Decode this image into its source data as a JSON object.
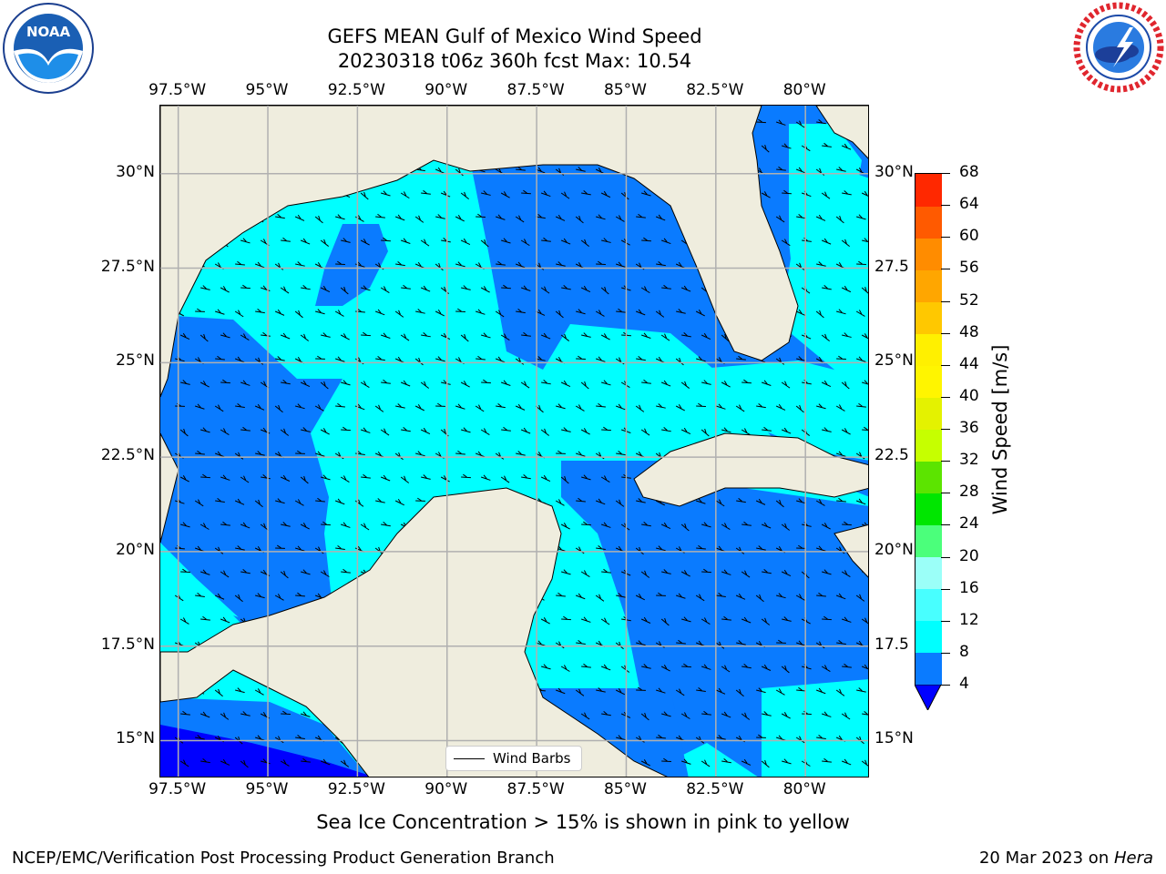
{
  "header": {
    "title_line1": "GEFS MEAN Gulf of Mexico Wind Speed",
    "title_line2": "20230318 t06z 360h fcst   Max: 10.54"
  },
  "logos": {
    "noaa_text": "NOAA",
    "noaa_ring": "NATIONAL OCEANIC AND ATMOSPHERIC ADMINISTRATION · U.S. DEPARTMENT OF COMMERCE",
    "nws_ring": "NATIONAL WEATHER SERVICE"
  },
  "map": {
    "lon_labels": [
      "97.5°W",
      "95°W",
      "92.5°W",
      "90°W",
      "87.5°W",
      "85°W",
      "82.5°W",
      "80°W"
    ],
    "lat_labels": [
      "30°N",
      "27.5°N",
      "25°N",
      "22.5°N",
      "20°N",
      "17.5°N",
      "15°N"
    ],
    "lat_labels_right": [
      "30°N",
      "27.5",
      "25°N",
      "22.5",
      "20°N",
      "17.5",
      "15°N"
    ],
    "lon_values": [
      -97.5,
      -95,
      -92.5,
      -90,
      -87.5,
      -85,
      -82.5,
      -80
    ],
    "lat_values": [
      30,
      27.5,
      25,
      22.5,
      20,
      17.5,
      15
    ],
    "extent": {
      "lon_min": -98,
      "lon_max": -78.2,
      "lat_min": 14,
      "lat_max": 31.8
    },
    "colors": {
      "land": "#efedde",
      "water_band_4_8": "#0a7bff",
      "water_band_8_12": "#00ffff",
      "water_below_4": "#0000ff",
      "grid": "#b0b0b0"
    }
  },
  "legend": {
    "label": "Wind Barbs"
  },
  "colorbar": {
    "label": "Wind Speed [m/s]",
    "ticks": [
      "68",
      "64",
      "60",
      "56",
      "52",
      "48",
      "44",
      "40",
      "36",
      "32",
      "28",
      "24",
      "20",
      "16",
      "12",
      "8",
      "4"
    ],
    "levels": [
      4,
      8,
      12,
      16,
      20,
      24,
      28,
      32,
      36,
      40,
      44,
      48,
      52,
      56,
      60,
      64,
      68
    ],
    "colors": [
      "#0a7bff",
      "#00ffff",
      "#48ffff",
      "#9bfff8",
      "#4bff7b",
      "#00e600",
      "#5ce400",
      "#c6ff00",
      "#e4f200",
      "#fff500",
      "#fff000",
      "#ffc800",
      "#ffa600",
      "#ff8c00",
      "#ff5a00",
      "#ff2800"
    ],
    "extend_below_color": "#0000ff"
  },
  "note": "Sea Ice Concentration > 15% is shown in pink to yellow",
  "footer": {
    "left": "NCEP/EMC/Verification Post Processing Product Generation Branch",
    "right_date": "20 Mar 2023 on ",
    "right_host": "Hera"
  }
}
